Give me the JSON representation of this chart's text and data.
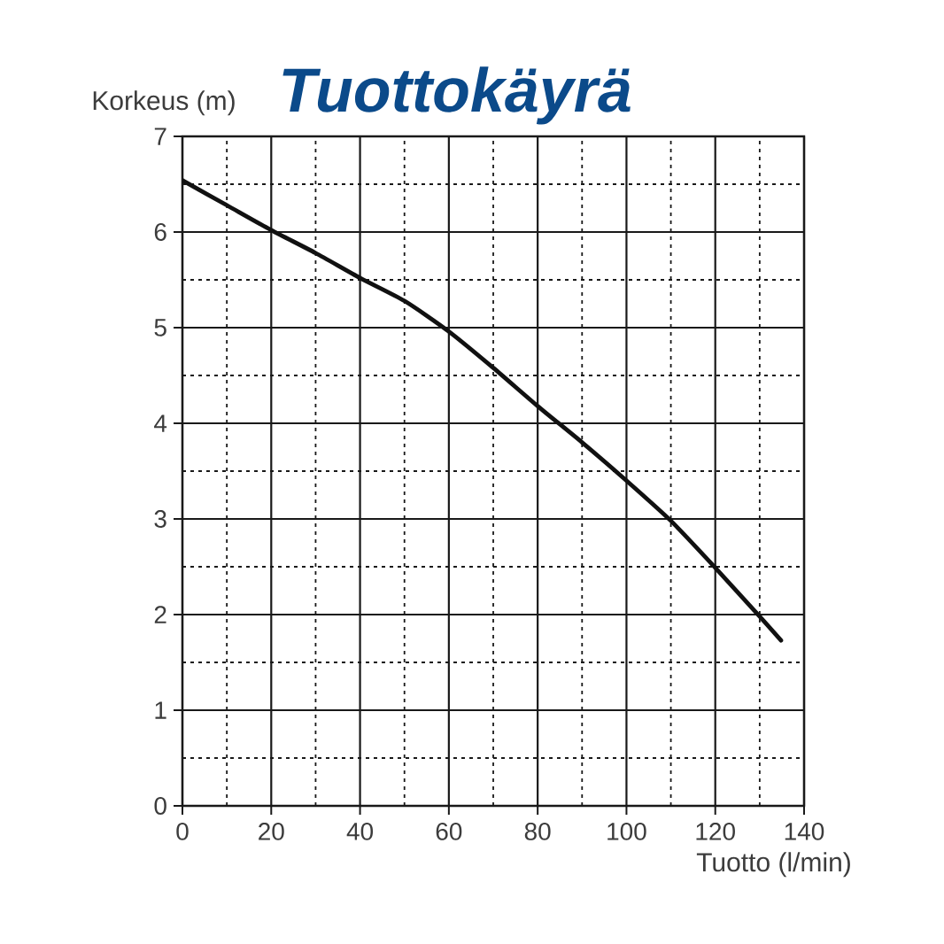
{
  "chart_data": {
    "type": "line",
    "title": "Tuottokäyrä",
    "xlabel": "Tuotto (l/min)",
    "ylabel": "Korkeus (m)",
    "x": [
      0,
      10,
      20,
      30,
      40,
      50,
      60,
      70,
      80,
      90,
      100,
      110,
      120,
      130,
      134.8
    ],
    "values": [
      6.54,
      6.28,
      6.02,
      5.78,
      5.52,
      5.28,
      4.96,
      4.58,
      4.18,
      3.8,
      3.4,
      2.98,
      2.49,
      1.98,
      1.73
    ],
    "color": "#111111",
    "line_style": "solid",
    "xlim": [
      0,
      140
    ],
    "ylim": [
      0,
      7
    ],
    "xticks": [
      0,
      20,
      40,
      60,
      80,
      100,
      120,
      140
    ],
    "yticks": [
      0,
      1,
      2,
      3,
      4,
      5,
      6,
      7
    ],
    "grid": true
  }
}
